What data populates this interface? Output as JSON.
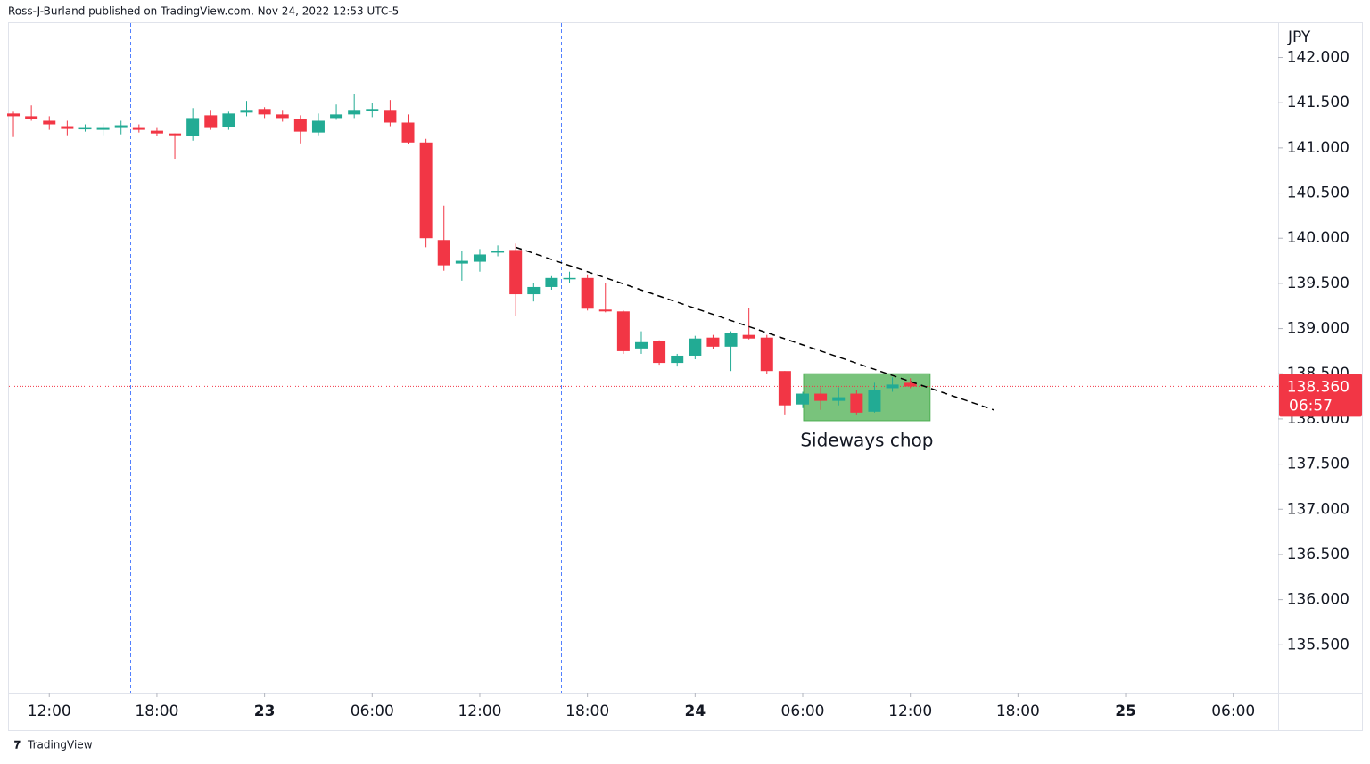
{
  "header": "Ross-J-Burland published on TradingView.com, Nov 24, 2022 12:53 UTC-5",
  "footer": "TradingView",
  "chart_data": {
    "type": "candlestick",
    "currency": "JPY",
    "x": [
      10,
      11,
      12,
      13,
      14,
      15,
      16,
      17,
      18,
      19,
      20,
      21,
      22,
      23,
      24,
      25,
      26,
      27,
      28,
      29,
      30,
      31,
      32,
      33,
      34,
      35,
      36,
      37,
      38,
      39,
      40,
      41,
      42,
      43,
      44,
      45,
      46,
      47,
      48,
      49,
      50,
      51,
      52,
      53,
      54,
      55,
      56,
      57,
      58,
      59,
      60
    ],
    "open": [
      141.38,
      141.35,
      141.3,
      141.24,
      141.21,
      141.2,
      141.22,
      141.22,
      141.19,
      141.16,
      141.13,
      141.36,
      141.23,
      141.39,
      141.43,
      141.37,
      141.32,
      141.17,
      141.33,
      141.37,
      141.41,
      141.42,
      141.28,
      141.06,
      139.98,
      139.72,
      139.74,
      139.84,
      139.87,
      139.38,
      139.46,
      139.55,
      139.56,
      139.21,
      139.19,
      138.78,
      138.86,
      138.62,
      138.7,
      138.9,
      138.8,
      138.93,
      138.9,
      138.53,
      138.16,
      138.28,
      138.2,
      138.28,
      138.08,
      138.34,
      138.4
    ],
    "high": [
      141.4,
      141.47,
      141.35,
      141.3,
      141.26,
      141.27,
      141.3,
      141.26,
      141.22,
      141.16,
      141.44,
      141.42,
      141.4,
      141.52,
      141.45,
      141.42,
      141.36,
      141.38,
      141.48,
      141.6,
      141.5,
      141.53,
      141.37,
      141.1,
      140.36,
      139.86,
      139.88,
      139.92,
      139.94,
      139.5,
      139.58,
      139.63,
      139.6,
      139.5,
      139.2,
      138.97,
      138.87,
      138.72,
      138.92,
      138.93,
      138.97,
      139.23,
      138.93,
      138.53,
      138.3,
      138.35,
      138.35,
      138.32,
      138.4,
      138.46,
      138.45
    ],
    "low": [
      141.12,
      141.3,
      141.2,
      141.14,
      141.18,
      141.14,
      141.15,
      141.17,
      141.13,
      140.88,
      141.08,
      141.2,
      141.2,
      141.35,
      141.33,
      141.29,
      141.05,
      141.14,
      141.31,
      141.33,
      141.34,
      141.24,
      141.04,
      139.9,
      139.64,
      139.53,
      139.63,
      139.8,
      139.14,
      139.3,
      139.43,
      139.5,
      139.2,
      139.18,
      138.72,
      138.72,
      138.6,
      138.58,
      138.66,
      138.77,
      138.53,
      138.88,
      138.5,
      138.05,
      138.12,
      138.1,
      138.15,
      138.05,
      138.07,
      138.3,
      138.34
    ],
    "close": [
      141.35,
      141.32,
      141.26,
      141.21,
      141.22,
      141.22,
      141.25,
      141.2,
      141.16,
      141.14,
      141.33,
      141.22,
      141.38,
      141.42,
      141.37,
      141.33,
      141.18,
      141.3,
      141.37,
      141.42,
      141.43,
      141.28,
      141.06,
      140.0,
      139.7,
      139.75,
      139.82,
      139.86,
      139.38,
      139.46,
      139.56,
      139.56,
      139.22,
      139.19,
      138.75,
      138.85,
      138.62,
      138.7,
      138.89,
      138.8,
      138.95,
      138.89,
      138.53,
      138.15,
      138.28,
      138.2,
      138.24,
      138.07,
      138.32,
      138.38,
      138.36
    ],
    "up_color": "#22ab94",
    "down_color": "#f23645",
    "xlim": [
      9.75,
      80.5
    ],
    "xticks": [
      {
        "value": 12,
        "label": "12:00"
      },
      {
        "value": 18,
        "label": "18:00"
      },
      {
        "value": 24,
        "label": "23"
      },
      {
        "value": 30,
        "label": "06:00"
      },
      {
        "value": 36,
        "label": "12:00"
      },
      {
        "value": 42,
        "label": "18:00"
      },
      {
        "value": 48,
        "label": "24"
      },
      {
        "value": 54,
        "label": "06:00"
      },
      {
        "value": 60,
        "label": "12:00"
      },
      {
        "value": 66,
        "label": "18:00"
      },
      {
        "value": 72,
        "label": "25"
      },
      {
        "value": 78,
        "label": "06:00"
      }
    ],
    "ylim": [
      134.97,
      142.39
    ],
    "yticks": [
      {
        "value": 142,
        "label": "142.000"
      },
      {
        "value": 141.5,
        "label": "141.500"
      },
      {
        "value": 141,
        "label": "141.000"
      },
      {
        "value": 140.5,
        "label": "140.500"
      },
      {
        "value": 140,
        "label": "140.000"
      },
      {
        "value": 139.5,
        "label": "139.500"
      },
      {
        "value": 139,
        "label": "139.000"
      },
      {
        "value": 138.5,
        "label": "138.500"
      },
      {
        "value": 138,
        "label": "138.000"
      },
      {
        "value": 137.5,
        "label": "137.500"
      },
      {
        "value": 137,
        "label": "137.000"
      },
      {
        "value": 136.5,
        "label": "136.500"
      },
      {
        "value": 136,
        "label": "136.000"
      },
      {
        "value": 135.5,
        "label": "135.500"
      }
    ],
    "last_price": {
      "value": 138.36,
      "label": "138.360"
    },
    "countdown": "06:57",
    "trendline": {
      "x": [
        38,
        64.65
      ],
      "y": [
        139.9,
        138.1
      ]
    },
    "highlight": {
      "xlim": [
        54.05,
        61.1
      ],
      "ylim": [
        137.98,
        138.5
      ],
      "color": "#4caf50"
    },
    "annotation": "Sideways chop"
  }
}
